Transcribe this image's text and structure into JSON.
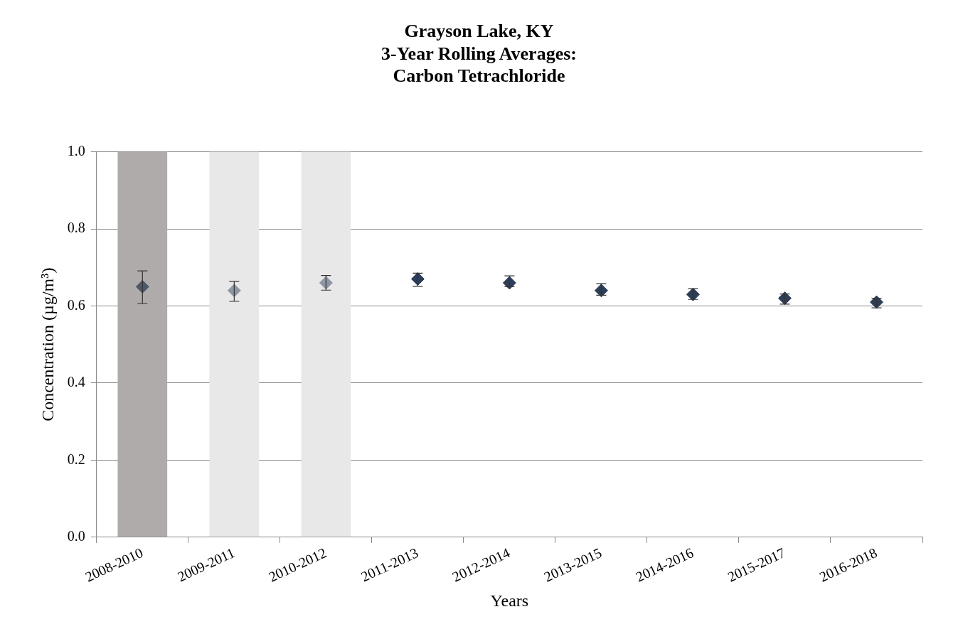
{
  "chart_data": {
    "type": "scatter",
    "title": "Grayson Lake, KY\n3-Year Rolling Averages:\nCarbon Tetrachloride",
    "xlabel": "Years",
    "ylabel": "Concentration (µg/m³)",
    "categories": [
      "2008-2010",
      "2009-2011",
      "2010-2012",
      "2011-2013",
      "2012-2014",
      "2013-2015",
      "2014-2016",
      "2015-2017",
      "2016-2018"
    ],
    "series": [
      {
        "type": "bar",
        "colors": [
          "#b0abab",
          "#e8e8e8",
          "#e8e8e8",
          null,
          null,
          null,
          null,
          null,
          null
        ],
        "values": [
          1.0,
          1.0,
          1.0,
          null,
          null,
          null,
          null,
          null,
          null
        ]
      },
      {
        "colors": [
          "#4f5868",
          "#8e96a4",
          "#8e96a4",
          "#2e3d58",
          "#2e3d58",
          "#2e3d58",
          "#2e3d58",
          "#2e3d58",
          "#2e3d58"
        ],
        "values": [
          0.65,
          0.64,
          0.66,
          0.67,
          0.66,
          0.64,
          0.63,
          0.62,
          0.61
        ],
        "errors": [
          [
            0.606,
            0.691
          ],
          [
            0.612,
            0.664
          ],
          [
            0.641,
            0.679
          ],
          [
            0.651,
            0.685
          ],
          [
            0.65,
            0.678
          ],
          [
            0.628,
            0.658
          ],
          [
            0.617,
            0.645
          ],
          [
            0.605,
            0.631
          ],
          [
            0.595,
            0.62
          ]
        ]
      }
    ],
    "ylim": [
      0,
      1.0
    ],
    "yticks": [
      {
        "value": 0,
        "label": "0.0"
      },
      0.2,
      0.4,
      0.6,
      0.8,
      {
        "value": 1,
        "label": "1.0"
      }
    ],
    "grid": "y",
    "legend": false,
    "marker": "diamond"
  }
}
